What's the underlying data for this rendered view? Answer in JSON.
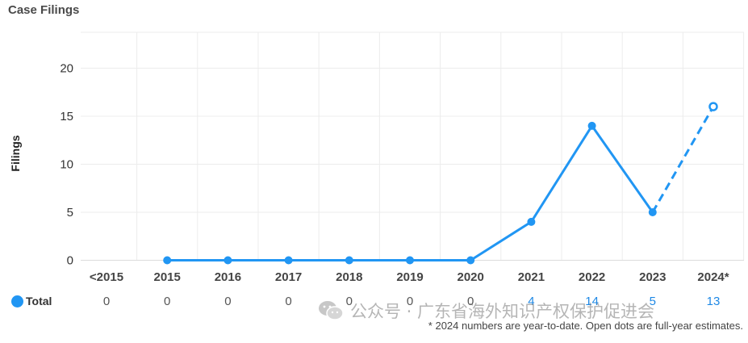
{
  "chart_data": {
    "type": "line",
    "title": "Case Filings",
    "ylabel": "Filings",
    "xlabel": "",
    "ylim": [
      0,
      23
    ],
    "yticks": [
      0,
      5,
      10,
      15,
      20
    ],
    "categories": [
      "<2015",
      "2015",
      "2016",
      "2017",
      "2018",
      "2019",
      "2020",
      "2021",
      "2022",
      "2023",
      "2024*"
    ],
    "series": [
      {
        "name": "Total",
        "color": "#2196f3",
        "values": [
          null,
          0,
          0,
          0,
          0,
          0,
          0,
          4,
          14,
          5,
          null
        ],
        "estimate": {
          "category": "2024*",
          "value": 16,
          "style": "dashed-line-open-dot"
        }
      }
    ],
    "table_row": {
      "label": "Total",
      "values": [
        "0",
        "0",
        "0",
        "0",
        "0",
        "0",
        "0",
        "4",
        "14",
        "5",
        "13"
      ]
    },
    "grid": true,
    "legend_position": "bottom-left"
  },
  "footnote": "* 2024 numbers are year-to-date. Open dots are full-year estimates.",
  "watermark": {
    "text": "公众号 · 广东省海外知识产权保护促进会",
    "icon": "wechat-icon"
  }
}
